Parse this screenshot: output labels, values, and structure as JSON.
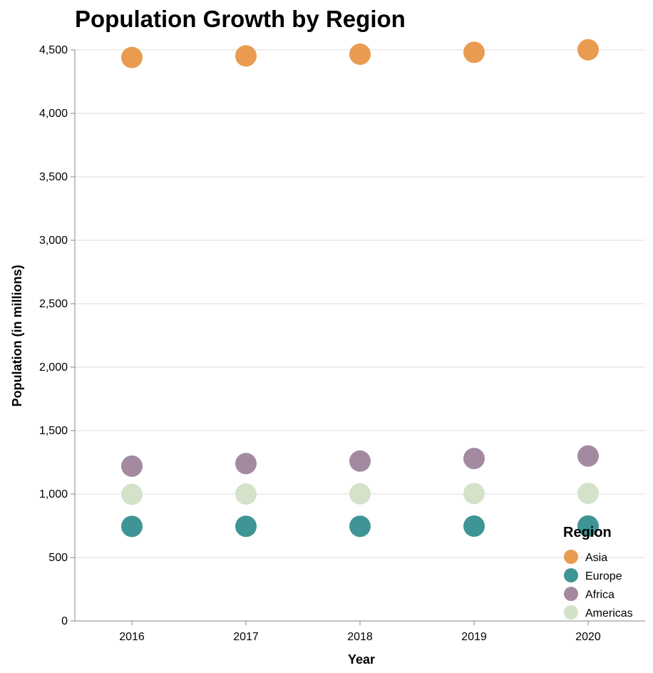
{
  "chart_data": {
    "type": "scatter",
    "title": "Population Growth by Region",
    "xlabel": "Year",
    "ylabel": "Population (in millions)",
    "x": [
      "2016",
      "2017",
      "2018",
      "2019",
      "2020"
    ],
    "ylim": [
      0,
      4500
    ],
    "yticks": [
      0,
      500,
      1000,
      1500,
      2000,
      2500,
      3000,
      3500,
      4000,
      4500
    ],
    "ytick_labels": [
      "0",
      "500",
      "1,000",
      "1,500",
      "2,000",
      "2,500",
      "3,000",
      "3,500",
      "4,000",
      "4,500"
    ],
    "grid": true,
    "legend": {
      "title": "Region",
      "position": "bottom-right"
    },
    "series": [
      {
        "name": "Asia",
        "color": "#e99b50",
        "values": [
          4440,
          4453,
          4466,
          4481,
          4501
        ]
      },
      {
        "name": "Europe",
        "color": "#3f9595",
        "values": [
          745,
          746,
          746,
          747,
          748
        ]
      },
      {
        "name": "Africa",
        "color": "#a48aa1",
        "values": [
          1220,
          1240,
          1260,
          1280,
          1300
        ]
      },
      {
        "name": "Americas",
        "color": "#d4e2c9",
        "values": [
          998,
          1000,
          1002,
          1004,
          1006
        ]
      }
    ]
  }
}
